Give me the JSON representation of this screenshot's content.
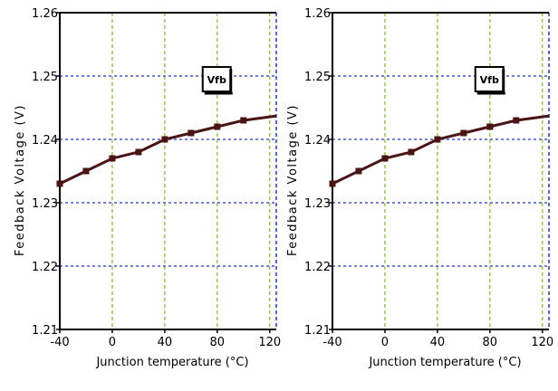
{
  "colors": {
    "series": "#4a1414",
    "vertical_grid": "#7fbf1f",
    "horizontal_grid": "#1f35d8",
    "right_edge": "#1f35d8",
    "axis": "#000000"
  },
  "chart_data": [
    {
      "type": "line",
      "xlabel": "Junction temperature (°C)",
      "ylabel": "Feedback Voltage (V)",
      "xlim": [
        -40,
        125
      ],
      "ylim": [
        1.21,
        1.26
      ],
      "xticks": [
        "-40",
        "0",
        "40",
        "80",
        "120"
      ],
      "yticks": [
        "1.21",
        "1.22",
        "1.23",
        "1.24",
        "1.25",
        "1.26"
      ],
      "grid": true,
      "legend_position": "top-right",
      "series": [
        {
          "name": "Vfb",
          "x": [
            -40,
            -20,
            0,
            20,
            40,
            60,
            80,
            100,
            125
          ],
          "y": [
            1.233,
            1.235,
            1.237,
            1.238,
            1.24,
            1.241,
            1.242,
            1.243,
            1.2437
          ]
        }
      ]
    },
    {
      "type": "line",
      "xlabel": "Junction temperature (°C)",
      "ylabel": "Feedback Voltage (V)",
      "xlim": [
        -40,
        125
      ],
      "ylim": [
        1.21,
        1.26
      ],
      "xticks": [
        "-40",
        "0",
        "40",
        "80",
        "120"
      ],
      "yticks": [
        "1.21",
        "1.22",
        "1.23",
        "1.24",
        "1.25",
        "1.26"
      ],
      "grid": true,
      "legend_position": "top-right",
      "series": [
        {
          "name": "Vfb",
          "x": [
            -40,
            -20,
            0,
            20,
            40,
            60,
            80,
            100,
            125
          ],
          "y": [
            1.233,
            1.235,
            1.237,
            1.238,
            1.24,
            1.241,
            1.242,
            1.243,
            1.2437
          ]
        }
      ]
    }
  ]
}
